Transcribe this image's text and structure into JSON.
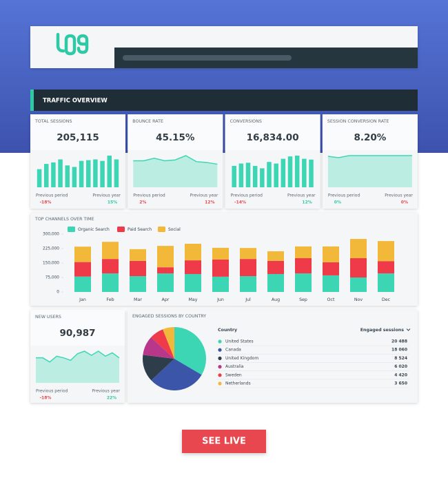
{
  "header": {
    "title": "TRAFFIC OVERVIEW"
  },
  "kpis": [
    {
      "title": "TOTAL SESSIONS",
      "value": "205,115",
      "spark_type": "bar",
      "color": "#3dd6b5",
      "spark": [
        24,
        31,
        33,
        37,
        29,
        27,
        35,
        36,
        37,
        35,
        42,
        37
      ],
      "comparisons": [
        {
          "label": "Previous period",
          "change": "-18%",
          "color": "#e8474f"
        },
        {
          "label": "Previous year",
          "change": "15%",
          "color": "#2fc9a5"
        }
      ]
    },
    {
      "title": "BOUNCE RATE",
      "value": "45.15%",
      "spark_type": "area",
      "color": "#3dd6b5",
      "spark": [
        31,
        31,
        34,
        31,
        32,
        37,
        30,
        29,
        27
      ],
      "comparisons": [
        {
          "label": "Previous period",
          "change": "2%",
          "color": "#e8474f"
        },
        {
          "label": "Previous year",
          "change": "12%",
          "color": "#e8474f"
        }
      ]
    },
    {
      "title": "CONVERSIONS",
      "value": "16,834.00",
      "spark_type": "bar",
      "color": "#3dd6b5",
      "spark": [
        27,
        30,
        31,
        27,
        24,
        32,
        30,
        36,
        39,
        40,
        36,
        35
      ],
      "comparisons": [
        {
          "label": "Previous period",
          "change": "-14%",
          "color": "#e8474f"
        },
        {
          "label": "Previous year",
          "change": "12%",
          "color": "#2fc9a5"
        }
      ]
    },
    {
      "title": "SESSION CONVERSION RATE",
      "value": "8.20%",
      "spark_type": "area",
      "color": "#3dd6b5",
      "spark": [
        46,
        44,
        47,
        47,
        47,
        47,
        47,
        47,
        47
      ],
      "comparisons": [
        {
          "label": "Previous period",
          "change": "0%",
          "color": "#2fc9a5"
        },
        {
          "label": "Previous year",
          "change": "0%",
          "color": "#e8474f"
        }
      ]
    }
  ],
  "channels": {
    "title": "TOP CHANNELS OVER TIME",
    "categories": [
      "Jan",
      "Feb",
      "Mar",
      "Apr",
      "May",
      "Jun",
      "Jul",
      "Aug",
      "Sep",
      "Oct",
      "Nov",
      "Dec"
    ],
    "series": [
      {
        "name": "Organic Search",
        "color": "#3dd6b5",
        "values": [
          80000,
          96000,
          82000,
          96000,
          93000,
          79000,
          82000,
          93000,
          96000,
          86000,
          75000,
          96000
        ]
      },
      {
        "name": "Paid Search",
        "color": "#ef3a4a",
        "values": [
          75000,
          75000,
          79000,
          32000,
          71000,
          89000,
          89000,
          68000,
          79000,
          68000,
          100000,
          64000
        ]
      },
      {
        "name": "Social",
        "color": "#f2b83a",
        "values": [
          80000,
          89000,
          61000,
          111000,
          86000,
          61000,
          57000,
          50000,
          61000,
          82000,
          100000,
          104000
        ]
      }
    ],
    "ylim": [
      0,
      300000
    ],
    "yticks": [
      0,
      {
        "value": 75000,
        "label": "75,000"
      },
      {
        "value": 150000,
        "label": "150,000"
      },
      {
        "value": 225000,
        "label": "225,000"
      },
      {
        "value": 300000,
        "label": "300,000"
      }
    ]
  },
  "new_users": {
    "title": "NEW USERS",
    "value": "90,987",
    "spark_type": "area",
    "color": "#3dd6b5",
    "spark": [
      30,
      30,
      25,
      32,
      30,
      27,
      35,
      38,
      33,
      38,
      32,
      36,
      30
    ],
    "comparisons": [
      {
        "label": "Previous period",
        "change": "-18%",
        "color": "#e8474f"
      },
      {
        "label": "Previous year",
        "change": "22%",
        "color": "#2fc9a5"
      }
    ]
  },
  "engaged": {
    "title": "ENGAGED SESSIONS BY COUNTRY",
    "column_country": "Country",
    "column_sessions": "Engaged sessions",
    "rows": [
      {
        "country": "United States",
        "color": "#3dd6b5",
        "value": 20488,
        "value_label": "20 488"
      },
      {
        "country": "Canada",
        "color": "#3b55a8",
        "value": 18060,
        "value_label": "18 060"
      },
      {
        "country": "United Kingdom",
        "color": "#2d3e4a",
        "value": 8524,
        "value_label": "8 524"
      },
      {
        "country": "Australia",
        "color": "#b8378a",
        "value": 6020,
        "value_label": "6 020"
      },
      {
        "country": "Sweden",
        "color": "#ef3a4a",
        "value": 4420,
        "value_label": "4 420"
      },
      {
        "country": "Netherlands",
        "color": "#f2b83a",
        "value": 3650,
        "value_label": "3 650"
      }
    ]
  },
  "button": "SEE LIVE"
}
